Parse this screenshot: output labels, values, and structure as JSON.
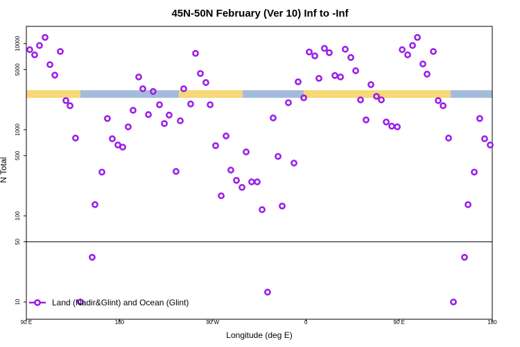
{
  "chart_data": {
    "type": "scatter",
    "title": "45N-50N February (Ver 10)   Inf to -Inf",
    "x_label": "Longitude (deg E)",
    "y_label": "N Total",
    "y_scale": "log",
    "xlim": [
      90,
      540
    ],
    "xticks": [
      {
        "value": 90,
        "label": "90 E"
      },
      {
        "value": 180,
        "label": "180"
      },
      {
        "value": 270,
        "label": "90 W"
      },
      {
        "value": 360,
        "label": "0"
      },
      {
        "value": 450,
        "label": "90 E"
      },
      {
        "value": 540,
        "label": "180"
      }
    ],
    "ylim": [
      6.3,
      15850
    ],
    "yticks": [
      10,
      50,
      100,
      500,
      1000,
      5000,
      10000
    ],
    "hline": 50,
    "legend_position": "lower left",
    "series": [
      {
        "name": "Land (Nadir&Glint) and Ocean (Glint)",
        "color": "#9b1fe8",
        "x": [
          93.3,
          98.0,
          102.7,
          108.1,
          112.8,
          117.5,
          122.8,
          128.2,
          132.2,
          137.5,
          142.2,
          153.6,
          156.3,
          163.0,
          168.3,
          173.0,
          178.4,
          183.1,
          188.4,
          193.1,
          198.5,
          202.5,
          207.9,
          212.5,
          218.6,
          223.3,
          227.9,
          234.6,
          238.7,
          242.0,
          248.7,
          253.4,
          258.1,
          263.4,
          267.5,
          272.8,
          278.2,
          282.9,
          287.5,
          292.9,
          298.3,
          302.3,
          307.6,
          313.0,
          317.7,
          323.0,
          328.4,
          333.1,
          337.1,
          343.1,
          348.5,
          352.5,
          357.9,
          363.2,
          368.6,
          372.6,
          377.9,
          382.6,
          388.0,
          393.4,
          398.0,
          403.4,
          408.1,
          412.8,
          418.1,
          422.8,
          428.2,
          432.9,
          437.6,
          442.9,
          448.3,
          453.0,
          458.3,
          463.0,
          467.7,
          473.0,
          477.0,
          483.1,
          487.8,
          492.5,
          497.8,
          502.5,
          513.2,
          516.6,
          522.6,
          527.9,
          532.6,
          538.0
        ],
        "values": [
          8500,
          7400,
          9500,
          11800,
          5700,
          4300,
          8100,
          2180,
          1900,
          800,
          10,
          33,
          135,
          322,
          1350,
          785,
          665,
          628,
          1080,
          1680,
          4100,
          2990,
          1500,
          2780,
          1950,
          1180,
          1480,
          328,
          1270,
          2990,
          1990,
          7700,
          4500,
          3530,
          1950,
          653,
          171,
          846,
          340,
          258,
          214,
          552,
          248,
          248,
          118,
          13,
          1370,
          490,
          130,
          2060,
          410,
          3600,
          2350,
          8000,
          7200,
          3950,
          8800,
          7850,
          4260,
          4100,
          8600,
          6900,
          4840,
          2220,
          1300,
          3340,
          2440,
          2220,
          1230,
          1100,
          1080,
          8500,
          7400,
          9500,
          11800,
          5800,
          4420,
          8100,
          2180,
          1900,
          800,
          10,
          33,
          135,
          322,
          1350,
          785,
          665
        ]
      }
    ]
  }
}
